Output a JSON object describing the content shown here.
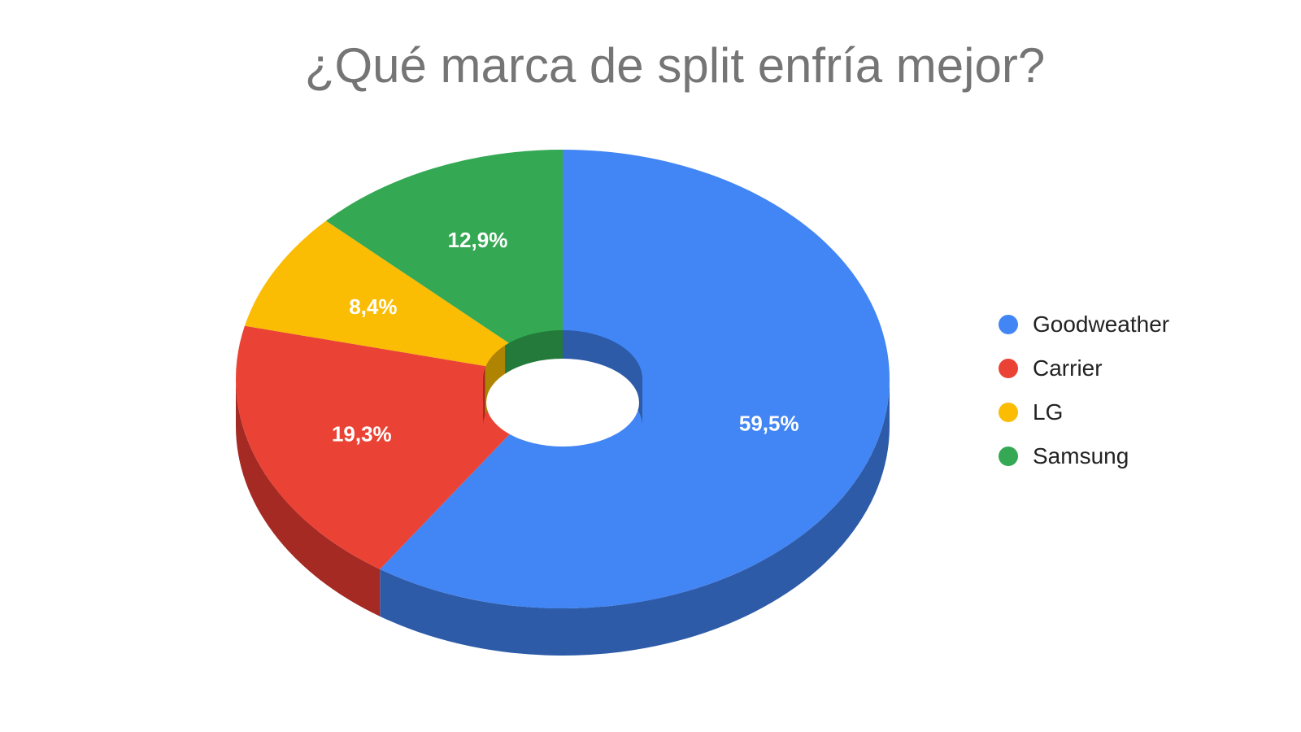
{
  "chart_data": {
    "type": "pie",
    "style": "3d-donut",
    "title": "¿Qué marca de split enfría mejor?",
    "legend_position": "right",
    "slices": [
      {
        "label": "Goodweather",
        "value": 59.5,
        "value_label": "59,5%",
        "color": "#4285F4",
        "side_color": "#2D5BA8"
      },
      {
        "label": "Carrier",
        "value": 19.3,
        "value_label": "19,3%",
        "color": "#EA4335",
        "side_color": "#A52A23"
      },
      {
        "label": "LG",
        "value": 8.4,
        "value_label": "8,4%",
        "color": "#FBBC04",
        "side_color": "#B08403"
      },
      {
        "label": "Samsung",
        "value": 12.9,
        "value_label": "12,9%",
        "color": "#34A853",
        "side_color": "#247A3A"
      }
    ]
  }
}
